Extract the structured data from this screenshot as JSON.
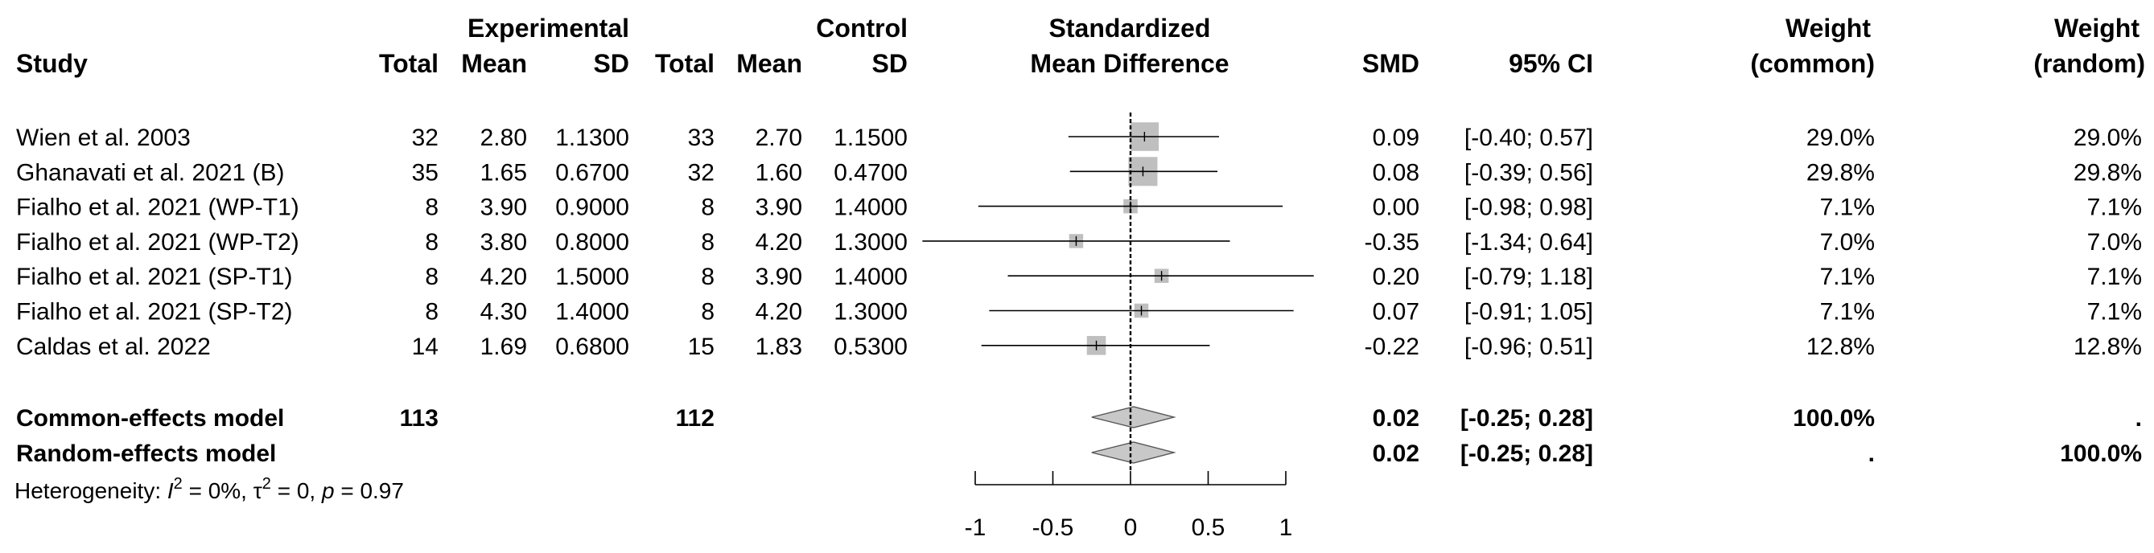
{
  "chart_data": {
    "type": "forest",
    "title": "Standardized Mean Difference",
    "headers": {
      "group_experimental": "Experimental",
      "group_control": "Control",
      "study": "Study",
      "total": "Total",
      "mean": "Mean",
      "sd": "SD",
      "effect_line1": "Standardized",
      "effect_line2": "Mean Difference",
      "smd": "SMD",
      "ci": "95% CI",
      "weight_common_line1": "Weight",
      "weight_common_line2": "(common)",
      "weight_random_line1": "Weight",
      "weight_random_line2": "(random)"
    },
    "studies": [
      {
        "name": "Wien et al. 2003",
        "exp_total": "32",
        "exp_mean": "2.80",
        "exp_sd": "1.1300",
        "ctrl_total": "33",
        "ctrl_mean": "2.70",
        "ctrl_sd": "1.1500",
        "smd": 0.09,
        "lower": -0.4,
        "upper": 0.57,
        "smd_text": "0.09",
        "ci_text": "[-0.40; 0.57]",
        "weight_common": "29.0%",
        "weight_random": "29.0%",
        "weight_value": 29.0
      },
      {
        "name": "Ghanavati et al. 2021 (B)",
        "exp_total": "35",
        "exp_mean": "1.65",
        "exp_sd": "0.6700",
        "ctrl_total": "32",
        "ctrl_mean": "1.60",
        "ctrl_sd": "0.4700",
        "smd": 0.08,
        "lower": -0.39,
        "upper": 0.56,
        "smd_text": "0.08",
        "ci_text": "[-0.39; 0.56]",
        "weight_common": "29.8%",
        "weight_random": "29.8%",
        "weight_value": 29.8
      },
      {
        "name": "Fialho et al. 2021 (WP-T1)",
        "exp_total": "8",
        "exp_mean": "3.90",
        "exp_sd": "0.9000",
        "ctrl_total": "8",
        "ctrl_mean": "3.90",
        "ctrl_sd": "1.4000",
        "smd": 0.0,
        "lower": -0.98,
        "upper": 0.98,
        "smd_text": "0.00",
        "ci_text": "[-0.98; 0.98]",
        "weight_common": "7.1%",
        "weight_random": "7.1%",
        "weight_value": 7.1
      },
      {
        "name": "Fialho et al. 2021 (WP-T2)",
        "exp_total": "8",
        "exp_mean": "3.80",
        "exp_sd": "0.8000",
        "ctrl_total": "8",
        "ctrl_mean": "4.20",
        "ctrl_sd": "1.3000",
        "smd": -0.35,
        "lower": -1.34,
        "upper": 0.64,
        "smd_text": "-0.35",
        "ci_text": "[-1.34; 0.64]",
        "weight_common": "7.0%",
        "weight_random": "7.0%",
        "weight_value": 7.0
      },
      {
        "name": "Fialho et al. 2021 (SP-T1)",
        "exp_total": "8",
        "exp_mean": "4.20",
        "exp_sd": "1.5000",
        "ctrl_total": "8",
        "ctrl_mean": "3.90",
        "ctrl_sd": "1.4000",
        "smd": 0.2,
        "lower": -0.79,
        "upper": 1.18,
        "smd_text": "0.20",
        "ci_text": "[-0.79; 1.18]",
        "weight_common": "7.1%",
        "weight_random": "7.1%",
        "weight_value": 7.1
      },
      {
        "name": "Fialho et al. 2021 (SP-T2)",
        "exp_total": "8",
        "exp_mean": "4.30",
        "exp_sd": "1.4000",
        "ctrl_total": "8",
        "ctrl_mean": "4.20",
        "ctrl_sd": "1.3000",
        "smd": 0.07,
        "lower": -0.91,
        "upper": 1.05,
        "smd_text": "0.07",
        "ci_text": "[-0.91; 1.05]",
        "weight_common": "7.1%",
        "weight_random": "7.1%",
        "weight_value": 7.1
      },
      {
        "name": "Caldas et al. 2022",
        "exp_total": "14",
        "exp_mean": "1.69",
        "exp_sd": "0.6800",
        "ctrl_total": "15",
        "ctrl_mean": "1.83",
        "ctrl_sd": "0.5300",
        "smd": -0.22,
        "lower": -0.96,
        "upper": 0.51,
        "smd_text": "-0.22",
        "ci_text": "[-0.96; 0.51]",
        "weight_common": "12.8%",
        "weight_random": "12.8%",
        "weight_value": 12.8
      }
    ],
    "models": [
      {
        "name": "Common-effects model",
        "exp_total": "113",
        "ctrl_total": "112",
        "smd": 0.02,
        "lower": -0.25,
        "upper": 0.28,
        "smd_text": "0.02",
        "ci_text": "[-0.25; 0.28]",
        "weight_common": "100.0%",
        "weight_random": "."
      },
      {
        "name": "Random-effects model",
        "exp_total": "",
        "ctrl_total": "",
        "smd": 0.02,
        "lower": -0.25,
        "upper": 0.28,
        "smd_text": "0.02",
        "ci_text": "[-0.25; 0.28]",
        "weight_common": ".",
        "weight_random": "100.0%"
      }
    ],
    "heterogeneity": {
      "prefix": "Heterogeneity: ",
      "i2_symbol": "I",
      "i2_value": " = 0%, ",
      "tau2_symbol": "τ",
      "tau2_value": " = 0, ",
      "p_symbol": "p",
      "p_value": " = 0.97",
      "superscript": "2"
    },
    "x_axis": {
      "range": [
        -1,
        1
      ],
      "ticks": [
        -1,
        -0.5,
        0,
        0.5,
        1
      ],
      "tick_labels": [
        "-1",
        "-0.5",
        "0",
        "0.5",
        "1"
      ]
    },
    "colors": {
      "square": "#bfbfbf",
      "diamond": "#c8c8c8",
      "line": "#000000"
    }
  }
}
